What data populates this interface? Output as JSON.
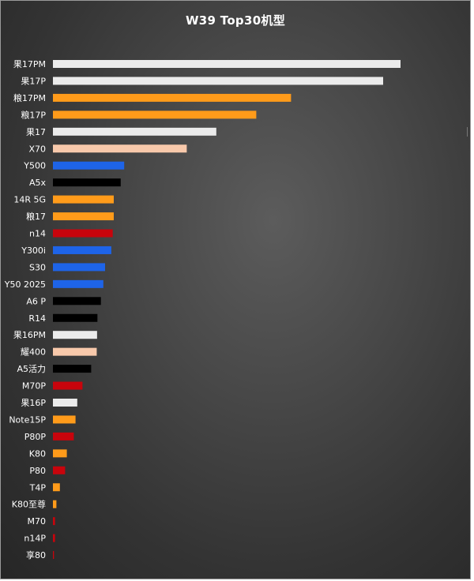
{
  "chart_data": {
    "type": "bar",
    "orientation": "horizontal",
    "title": "W39  Top30机型",
    "xlabel": "",
    "ylabel": "",
    "grid": false,
    "legend": "none",
    "xlim": [
      0,
      100
    ],
    "categories": [
      "果17PM",
      "果17P",
      "粮17PM",
      "粮17P",
      "果17",
      "X70",
      "Y500",
      "A5x",
      "14R 5G",
      "粮17",
      "n14",
      "Y300i",
      "S30",
      "Y50 2025",
      "A6 P",
      "R14",
      "果16PM",
      "耀400",
      "A5活力",
      "M70P",
      "果16P",
      "Note15P",
      "P80P",
      "K80",
      "P80",
      "T4P",
      "K80至尊",
      "M70",
      "n14P",
      "享80"
    ],
    "values": [
      100,
      95,
      68.5,
      58.5,
      47,
      38.5,
      20.5,
      19.5,
      17.5,
      17.5,
      17.2,
      16.8,
      15,
      14.5,
      13.8,
      12.8,
      12.7,
      12.6,
      11,
      8.5,
      7,
      6.5,
      6,
      4,
      3.5,
      2,
      1,
      0.6,
      0.6,
      0.3
    ],
    "colors": [
      "#ebebeb",
      "#ebebeb",
      "#ff9b1a",
      "#ff9b1a",
      "#ebebeb",
      "#f8c9ab",
      "#1e64e8",
      "#000000",
      "#ff9b1a",
      "#ff9b1a",
      "#c8040c",
      "#1e64e8",
      "#1e64e8",
      "#1e64e8",
      "#000000",
      "#000000",
      "#ebebeb",
      "#f8c9ab",
      "#000000",
      "#c8040c",
      "#ebebeb",
      "#ff9b1a",
      "#c8040c",
      "#ff9b1a",
      "#c8040c",
      "#ff9b1a",
      "#ff9b1a",
      "#c8040c",
      "#c8040c",
      "#c8040c"
    ]
  }
}
